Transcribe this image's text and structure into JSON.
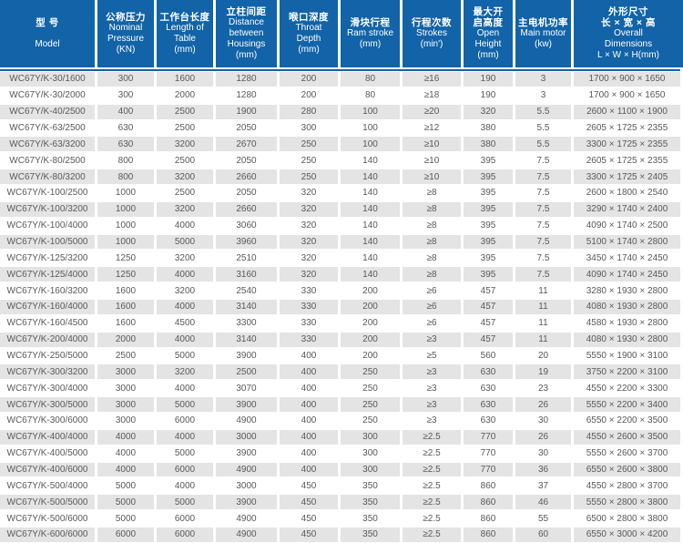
{
  "colors": {
    "header_bg": "#1263a7",
    "stripe": "#e4e4e4",
    "body_text": "#58595b",
    "header_text": "#ffffff"
  },
  "table": {
    "columns": [
      {
        "lines": [
          "型 号",
          "Model"
        ]
      },
      {
        "lines": [
          "公称压力",
          "Nominal",
          "Pressure",
          "(KN)"
        ]
      },
      {
        "lines": [
          "工作台长度",
          "Length of",
          "Table",
          "(mm)"
        ]
      },
      {
        "lines": [
          "立柱间距",
          "Distance",
          "between",
          "Housings",
          "(mm)"
        ]
      },
      {
        "lines": [
          "喉口深度",
          "Throat",
          "Depth",
          "(mm)"
        ]
      },
      {
        "lines": [
          "滑块行程",
          "Ram stroke",
          "(mm)"
        ]
      },
      {
        "lines": [
          "行程次数",
          "Strokes",
          "(min')"
        ]
      },
      {
        "lines": [
          "最大开",
          "启高度",
          "Open",
          "Height",
          "(mm)"
        ]
      },
      {
        "lines": [
          "主电机功率",
          "Main motor",
          "(kw)"
        ]
      },
      {
        "lines": [
          "外形尺寸",
          "长 × 宽 × 高",
          "Overall",
          "Dimensions",
          "L × W × H(mm)"
        ]
      }
    ],
    "rows": [
      [
        "WC67Y/K-30/1600",
        "300",
        "1600",
        "1280",
        "200",
        "80",
        "≥16",
        "190",
        "3",
        "1700 × 900 × 1650"
      ],
      [
        "WC67Y/K-30/2000",
        "300",
        "2000",
        "1280",
        "200",
        "80",
        "≥18",
        "190",
        "3",
        "1700 × 900 × 1650"
      ],
      [
        "WC67Y/K-40/2500",
        "400",
        "2500",
        "1900",
        "280",
        "100",
        "≥20",
        "320",
        "5.5",
        "2600 × 1100 × 1900"
      ],
      [
        "WC67Y/K-63/2500",
        "630",
        "2500",
        "2050",
        "300",
        "100",
        "≥12",
        "380",
        "5.5",
        "2605 × 1725 × 2355"
      ],
      [
        "WC67Y/K-63/3200",
        "630",
        "3200",
        "2670",
        "250",
        "100",
        "≥10",
        "380",
        "5.5",
        "3300 × 1725 × 2355"
      ],
      [
        "WC67Y/K-80/2500",
        "800",
        "2500",
        "2050",
        "250",
        "140",
        "≥10",
        "395",
        "7.5",
        "2605 × 1725 × 2355"
      ],
      [
        "WC67Y/K-80/3200",
        "800",
        "3200",
        "2660",
        "250",
        "140",
        "≥10",
        "395",
        "7.5",
        "3300 × 1725 × 2405"
      ],
      [
        "WC67Y/K-100/2500",
        "1000",
        "2500",
        "2050",
        "320",
        "140",
        "≥8",
        "395",
        "7.5",
        "2600 × 1800 × 2540"
      ],
      [
        "WC67Y/K-100/3200",
        "1000",
        "3200",
        "2660",
        "320",
        "140",
        "≥8",
        "395",
        "7.5",
        "3290 × 1740 × 2400"
      ],
      [
        "WC67Y/K-100/4000",
        "1000",
        "4000",
        "3060",
        "320",
        "140",
        "≥8",
        "395",
        "7.5",
        "4090 × 1740 × 2500"
      ],
      [
        "WC67Y/K-100/5000",
        "1000",
        "5000",
        "3960",
        "320",
        "140",
        "≥8",
        "395",
        "7.5",
        "5100 × 1740 × 2800"
      ],
      [
        "WC67Y/K-125/3200",
        "1250",
        "3200",
        "2510",
        "320",
        "140",
        "≥8",
        "395",
        "7.5",
        "3450 × 1740 × 2450"
      ],
      [
        "WC67Y/K-125/4000",
        "1250",
        "4000",
        "3160",
        "320",
        "140",
        "≥8",
        "395",
        "7.5",
        "4090 × 1740 × 2450"
      ],
      [
        "WC67Y/K-160/3200",
        "1600",
        "3200",
        "2540",
        "330",
        "200",
        "≥6",
        "457",
        "11",
        "3280 × 1930 × 2800"
      ],
      [
        "WC67Y/K-160/4000",
        "1600",
        "4000",
        "3140",
        "330",
        "200",
        "≥6",
        "457",
        "11",
        "4080 × 1930 × 2800"
      ],
      [
        "WC67Y/K-160/4500",
        "1600",
        "4500",
        "3300",
        "330",
        "200",
        "≥6",
        "457",
        "11",
        "4580 × 1930 × 2800"
      ],
      [
        "WC67Y/K-200/4000",
        "2000",
        "4000",
        "3140",
        "330",
        "200",
        "≥3",
        "457",
        "11",
        "4080 × 1930 × 2800"
      ],
      [
        "WC67Y/K-250/5000",
        "2500",
        "5000",
        "3900",
        "400",
        "200",
        "≥5",
        "560",
        "20",
        "5550 × 1900 × 3100"
      ],
      [
        "WC67Y/K-300/3200",
        "3000",
        "3200",
        "2500",
        "400",
        "250",
        "≥3",
        "630",
        "19",
        "3750 × 2200 × 3100"
      ],
      [
        "WC67Y/K-300/4000",
        "3000",
        "4000",
        "3070",
        "400",
        "250",
        "≥3",
        "630",
        "23",
        "4550 × 2200 × 3300"
      ],
      [
        "WC67Y/K-300/5000",
        "3000",
        "5000",
        "3900",
        "400",
        "250",
        "≥3",
        "630",
        "26",
        "5550 × 2200 × 3400"
      ],
      [
        "WC67Y/K-300/6000",
        "3000",
        "6000",
        "4900",
        "400",
        "250",
        "≥3",
        "630",
        "30",
        "6550 × 2200 × 3500"
      ],
      [
        "WC67Y/K-400/4000",
        "4000",
        "4000",
        "3000",
        "400",
        "300",
        "≥2.5",
        "770",
        "26",
        "4550 × 2600 × 3500"
      ],
      [
        "WC67Y/K-400/5000",
        "4000",
        "5000",
        "3900",
        "400",
        "300",
        "≥2.5",
        "770",
        "30",
        "5550 × 2600 × 3700"
      ],
      [
        "WC67Y/K-400/6000",
        "4000",
        "6000",
        "4900",
        "400",
        "300",
        "≥2.5",
        "770",
        "36",
        "6550 × 2600 × 3800"
      ],
      [
        "WC67Y/K-500/4000",
        "5000",
        "4000",
        "3000",
        "450",
        "350",
        "≥2.5",
        "860",
        "37",
        "4550 × 2800 × 3700"
      ],
      [
        "WC67Y/K-500/5000",
        "5000",
        "5000",
        "3900",
        "450",
        "350",
        "≥2.5",
        "860",
        "46",
        "5550 × 2800 × 3800"
      ],
      [
        "WC67Y/K-500/6000",
        "5000",
        "6000",
        "4900",
        "450",
        "350",
        "≥2.5",
        "860",
        "55",
        "6500 × 2800 × 3800"
      ],
      [
        "WC67Y/K-600/6000",
        "6000",
        "6000",
        "4900",
        "450",
        "350",
        "≥2.5",
        "860",
        "60",
        "6550 × 3000 × 4200"
      ]
    ]
  }
}
